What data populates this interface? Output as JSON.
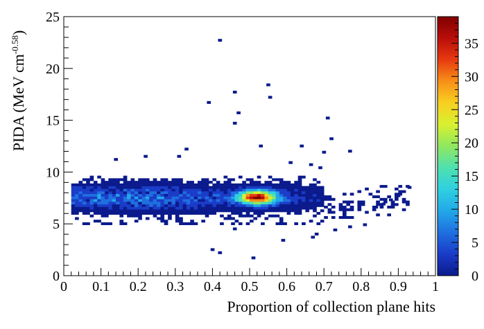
{
  "chart_data": {
    "type": "heatmap",
    "title": "",
    "xlabel": "Proportion of collection plane hits",
    "ylabel_main": "PIDA (MeV cm",
    "ylabel_exp": "-0.58",
    "ylabel_close": ")",
    "xlim": [
      0,
      1
    ],
    "ylim": [
      0,
      25
    ],
    "x_ticks": [
      "0",
      "0.1",
      "0.2",
      "0.3",
      "0.4",
      "0.5",
      "0.6",
      "0.7",
      "0.8",
      "0.9",
      "1"
    ],
    "y_ticks": [
      "0",
      "5",
      "10",
      "15",
      "20",
      "25"
    ],
    "grid": false,
    "bin_width_x": 0.01,
    "bin_height_y": 0.25,
    "color_scale": {
      "range": [
        0,
        39
      ],
      "ticks": [
        "0",
        "5",
        "10",
        "15",
        "20",
        "25",
        "30",
        "35"
      ],
      "palette": "rainbow (blue to dark red)",
      "colors": [
        "#0b1a8c",
        "#1a3cc8",
        "#1f6fe0",
        "#22a8e8",
        "#2fd0e0",
        "#4fe0b0",
        "#8fe860",
        "#d8f030",
        "#f8d020",
        "#f89018",
        "#e83a10",
        "#b80e0a",
        "#800000"
      ]
    },
    "dense_band": {
      "x_range": [
        0.02,
        0.69
      ],
      "y_center": 7.4,
      "y_spread": 0.75,
      "peak_x": 0.515,
      "peak_y": 7.45,
      "peak_count": 37
    },
    "sparse_points": [
      [
        0.415,
        22.6
      ],
      [
        0.545,
        18.3
      ],
      [
        0.455,
        17.6
      ],
      [
        0.55,
        17.1
      ],
      [
        0.385,
        16.6
      ],
      [
        0.465,
        15.6
      ],
      [
        0.455,
        14.6
      ],
      [
        0.705,
        15.1
      ],
      [
        0.715,
        13.1
      ],
      [
        0.695,
        11.8
      ],
      [
        0.635,
        12.4
      ],
      [
        0.325,
        12.1
      ],
      [
        0.305,
        11.4
      ],
      [
        0.215,
        11.4
      ],
      [
        0.135,
        11.1
      ],
      [
        0.765,
        11.9
      ],
      [
        0.525,
        12.4
      ],
      [
        0.605,
        10.8
      ],
      [
        0.66,
        10.6
      ],
      [
        0.685,
        10.3
      ],
      [
        0.395,
        2.4
      ],
      [
        0.415,
        2.1
      ],
      [
        0.505,
        1.6
      ],
      [
        0.585,
        3.3
      ],
      [
        0.665,
        3.6
      ],
      [
        0.675,
        3.9
      ],
      [
        0.725,
        4.3
      ],
      [
        0.455,
        4.4
      ],
      [
        0.765,
        4.6
      ],
      [
        0.805,
        4.8
      ],
      [
        0.925,
        8.4
      ],
      [
        0.895,
        7.6
      ],
      [
        0.875,
        7.2
      ],
      [
        0.855,
        6.8
      ],
      [
        0.835,
        6.5
      ]
    ]
  }
}
